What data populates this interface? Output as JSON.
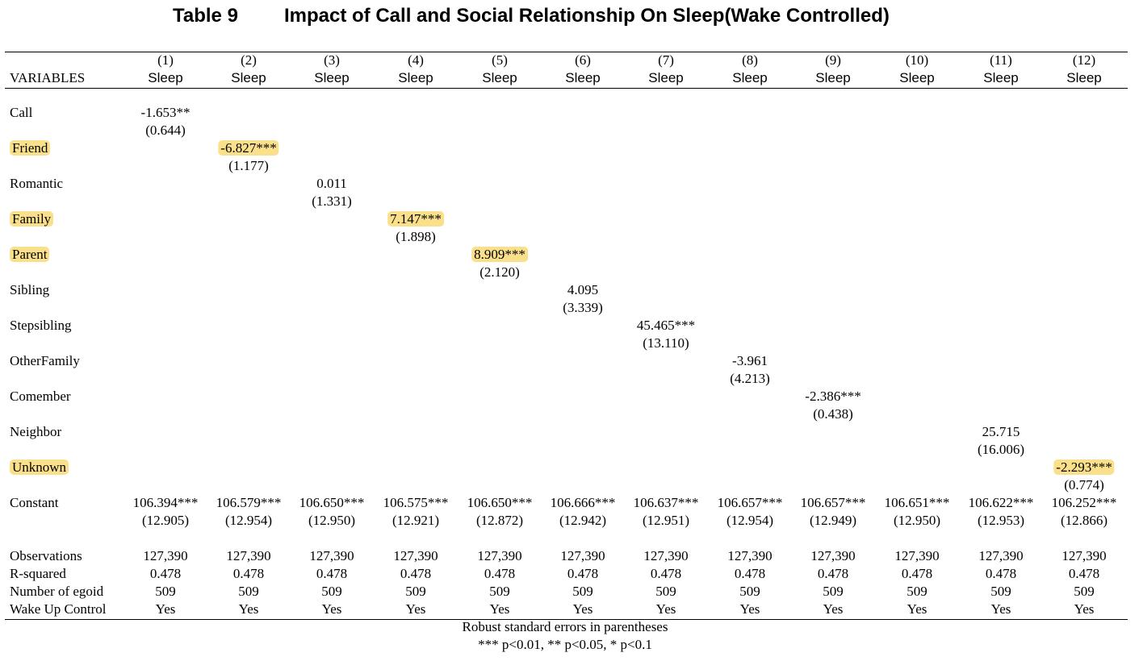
{
  "title": {
    "number": "Table 9",
    "text": "Impact of Call and Social Relationship On Sleep(Wake Controlled)"
  },
  "header": {
    "variables_label": "VARIABLES",
    "columns": [
      {
        "num": "(1)",
        "dep": "Sleep"
      },
      {
        "num": "(2)",
        "dep": "Sleep"
      },
      {
        "num": "(3)",
        "dep": "Sleep"
      },
      {
        "num": "(4)",
        "dep": "Sleep"
      },
      {
        "num": "(5)",
        "dep": "Sleep"
      },
      {
        "num": "(6)",
        "dep": "Sleep"
      },
      {
        "num": "(7)",
        "dep": "Sleep"
      },
      {
        "num": "(8)",
        "dep": "Sleep"
      },
      {
        "num": "(9)",
        "dep": "Sleep"
      },
      {
        "num": "(10)",
        "dep": "Sleep"
      },
      {
        "num": "(11)",
        "dep": "Sleep"
      },
      {
        "num": "(12)",
        "dep": "Sleep"
      }
    ]
  },
  "rows": [
    {
      "label": "Call",
      "highlight_label": false,
      "col": 0,
      "coef": "-1.653**",
      "se": "(0.644)",
      "highlight_coef": false
    },
    {
      "label": "Friend",
      "highlight_label": true,
      "col": 1,
      "coef": "-6.827***",
      "se": "(1.177)",
      "highlight_coef": true
    },
    {
      "label": "Romantic",
      "highlight_label": false,
      "col": 2,
      "coef": "0.011",
      "se": "(1.331)",
      "highlight_coef": false
    },
    {
      "label": "Family",
      "highlight_label": true,
      "col": 3,
      "coef": "7.147***",
      "se": "(1.898)",
      "highlight_coef": true
    },
    {
      "label": "Parent",
      "highlight_label": true,
      "col": 4,
      "coef": "8.909***",
      "se": "(2.120)",
      "highlight_coef": true
    },
    {
      "label": "Sibling",
      "highlight_label": false,
      "col": 5,
      "coef": "4.095",
      "se": "(3.339)",
      "highlight_coef": false
    },
    {
      "label": "Stepsibling",
      "highlight_label": false,
      "col": 6,
      "coef": "45.465***",
      "se": "(13.110)",
      "highlight_coef": false
    },
    {
      "label": "OtherFamily",
      "highlight_label": false,
      "col": 7,
      "coef": "-3.961",
      "se": "(4.213)",
      "highlight_coef": false
    },
    {
      "label": "Comember",
      "highlight_label": false,
      "col": 8,
      "coef": "-2.386***",
      "se": "(0.438)",
      "highlight_coef": false
    },
    {
      "label": "Neighbor",
      "highlight_label": false,
      "col": 10,
      "coef": "25.715",
      "se": "(16.006)",
      "highlight_coef": false
    },
    {
      "label": "Unknown",
      "highlight_label": true,
      "col": 11,
      "coef": "-2.293***",
      "se": "(0.774)",
      "highlight_coef": true
    }
  ],
  "constant": {
    "label": "Constant",
    "coefs": [
      "106.394***",
      "106.579***",
      "106.650***",
      "106.575***",
      "106.650***",
      "106.666***",
      "106.637***",
      "106.657***",
      "106.657***",
      "106.651***",
      "106.622***",
      "106.252***"
    ],
    "ses": [
      "(12.905)",
      "(12.954)",
      "(12.950)",
      "(12.921)",
      "(12.872)",
      "(12.942)",
      "(12.951)",
      "(12.954)",
      "(12.949)",
      "(12.950)",
      "(12.953)",
      "(12.866)"
    ]
  },
  "stats": [
    {
      "label": "Observations",
      "values": [
        "127,390",
        "127,390",
        "127,390",
        "127,390",
        "127,390",
        "127,390",
        "127,390",
        "127,390",
        "127,390",
        "127,390",
        "127,390",
        "127,390"
      ]
    },
    {
      "label": "R-squared",
      "values": [
        "0.478",
        "0.478",
        "0.478",
        "0.478",
        "0.478",
        "0.478",
        "0.478",
        "0.478",
        "0.478",
        "0.478",
        "0.478",
        "0.478"
      ]
    },
    {
      "label": "Number of egoid",
      "values": [
        "509",
        "509",
        "509",
        "509",
        "509",
        "509",
        "509",
        "509",
        "509",
        "509",
        "509",
        "509"
      ]
    },
    {
      "label": "Wake Up Control",
      "values": [
        "Yes",
        "Yes",
        "Yes",
        "Yes",
        "Yes",
        "Yes",
        "Yes",
        "Yes",
        "Yes",
        "Yes",
        "Yes",
        "Yes"
      ]
    }
  ],
  "notes": [
    "Robust standard errors in parentheses",
    "*** p<0.01, ** p<0.05, * p<0.1"
  ],
  "colors": {
    "highlight": "#fbe08c"
  }
}
